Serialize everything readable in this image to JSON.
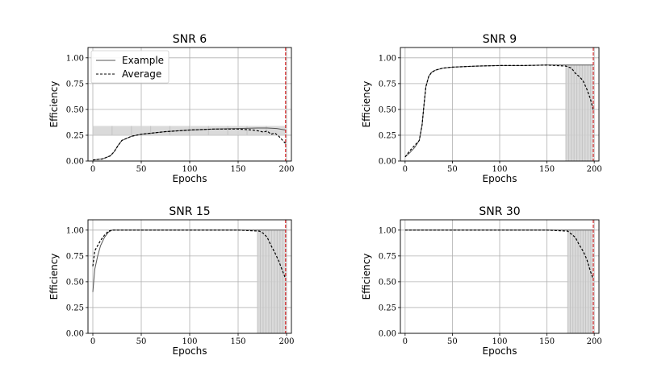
{
  "chart_data": [
    {
      "type": "line",
      "title": "SNR 6",
      "xlabel": "Epochs",
      "ylabel": "Efficiency",
      "xlim": [
        -5,
        205
      ],
      "ylim": [
        0,
        1.1
      ],
      "xticks": [
        "0",
        "50",
        "100",
        "150",
        "200"
      ],
      "yticks": [
        "0.00",
        "0.25",
        "0.50",
        "0.75",
        "1.00"
      ],
      "grid": true,
      "vline_x": 199,
      "legend": {
        "placement": "top-left",
        "entries": [
          "Example",
          "Average"
        ]
      },
      "series": [
        {
          "name": "Example",
          "x": [
            0,
            10,
            18,
            22,
            26,
            30,
            40,
            50,
            75,
            100,
            125,
            150,
            170,
            180,
            190,
            199
          ],
          "values": [
            0.01,
            0.02,
            0.05,
            0.09,
            0.15,
            0.2,
            0.24,
            0.26,
            0.285,
            0.3,
            0.31,
            0.315,
            0.32,
            0.32,
            0.315,
            0.3
          ]
        },
        {
          "name": "Average",
          "x": [
            0,
            10,
            18,
            22,
            26,
            30,
            40,
            50,
            75,
            100,
            125,
            150,
            165,
            172,
            176,
            180,
            184,
            188,
            192,
            196,
            199
          ],
          "values": [
            0.01,
            0.02,
            0.05,
            0.09,
            0.15,
            0.2,
            0.24,
            0.26,
            0.285,
            0.3,
            0.31,
            0.31,
            0.3,
            0.29,
            0.28,
            0.29,
            0.26,
            0.27,
            0.24,
            0.2,
            0.17
          ]
        }
      ],
      "runs_band": {
        "x_start": 0,
        "x_end": 199,
        "low": 0.25,
        "high": 0.34
      }
    },
    {
      "type": "line",
      "title": "SNR 9",
      "xlabel": "Epochs",
      "ylabel": "Efficiency",
      "xlim": [
        -5,
        205
      ],
      "ylim": [
        0,
        1.1
      ],
      "xticks": [
        "0",
        "50",
        "100",
        "150",
        "200"
      ],
      "yticks": [
        "0.00",
        "0.25",
        "0.50",
        "0.75",
        "1.00"
      ],
      "grid": true,
      "vline_x": 199,
      "series": [
        {
          "name": "Example",
          "x": [
            0,
            5,
            10,
            15,
            18,
            20,
            22,
            25,
            28,
            32,
            40,
            50,
            75,
            100,
            125,
            150,
            175,
            199
          ],
          "values": [
            0.04,
            0.08,
            0.13,
            0.2,
            0.35,
            0.55,
            0.72,
            0.82,
            0.86,
            0.88,
            0.9,
            0.91,
            0.92,
            0.925,
            0.925,
            0.93,
            0.93,
            0.93
          ]
        },
        {
          "name": "Average",
          "x": [
            0,
            5,
            10,
            15,
            18,
            20,
            22,
            25,
            28,
            32,
            40,
            50,
            75,
            100,
            125,
            150,
            170,
            176,
            180,
            184,
            188,
            192,
            196,
            199
          ],
          "values": [
            0.04,
            0.1,
            0.15,
            0.2,
            0.35,
            0.55,
            0.72,
            0.82,
            0.86,
            0.88,
            0.9,
            0.91,
            0.92,
            0.925,
            0.925,
            0.93,
            0.92,
            0.9,
            0.85,
            0.82,
            0.78,
            0.7,
            0.6,
            0.49
          ]
        }
      ],
      "runs_band": {
        "x_start": 170,
        "x_end": 199,
        "low": 0.0,
        "high": 0.93
      }
    },
    {
      "type": "line",
      "title": "SNR 15",
      "xlabel": "Epochs",
      "ylabel": "Efficiency",
      "xlim": [
        -5,
        205
      ],
      "ylim": [
        0,
        1.1
      ],
      "xticks": [
        "0",
        "50",
        "100",
        "150",
        "200"
      ],
      "yticks": [
        "0.00",
        "0.25",
        "0.50",
        "0.75",
        "1.00"
      ],
      "grid": true,
      "vline_x": 199,
      "series": [
        {
          "name": "Example",
          "x": [
            0,
            2,
            5,
            8,
            12,
            16,
            20,
            50,
            100,
            150,
            199
          ],
          "values": [
            0.4,
            0.62,
            0.75,
            0.85,
            0.93,
            0.98,
            1.0,
            1.0,
            1.0,
            1.0,
            1.0
          ]
        },
        {
          "name": "Average",
          "x": [
            0,
            2,
            5,
            8,
            12,
            16,
            20,
            50,
            100,
            150,
            172,
            176,
            180,
            184,
            188,
            192,
            196,
            199
          ],
          "values": [
            0.65,
            0.8,
            0.85,
            0.9,
            0.95,
            0.99,
            1.0,
            1.0,
            1.0,
            1.0,
            0.99,
            0.97,
            0.93,
            0.85,
            0.78,
            0.7,
            0.6,
            0.53
          ]
        }
      ],
      "runs_band": {
        "x_start": 170,
        "x_end": 199,
        "low": 0.0,
        "high": 1.0
      }
    },
    {
      "type": "line",
      "title": "SNR 30",
      "xlabel": "Epochs",
      "ylabel": "Efficiency",
      "xlim": [
        -5,
        205
      ],
      "ylim": [
        0,
        1.1
      ],
      "xticks": [
        "0",
        "50",
        "100",
        "150",
        "200"
      ],
      "yticks": [
        "0.00",
        "0.25",
        "0.50",
        "0.75",
        "1.00"
      ],
      "grid": true,
      "vline_x": 199,
      "series": [
        {
          "name": "Example",
          "x": [
            0,
            50,
            100,
            150,
            199
          ],
          "values": [
            1.0,
            1.0,
            1.0,
            1.0,
            1.0
          ]
        },
        {
          "name": "Average",
          "x": [
            0,
            50,
            100,
            150,
            172,
            176,
            180,
            184,
            188,
            192,
            196,
            199
          ],
          "values": [
            1.0,
            1.0,
            1.0,
            1.0,
            0.99,
            0.96,
            0.93,
            0.86,
            0.8,
            0.72,
            0.6,
            0.52
          ]
        }
      ],
      "runs_band": {
        "x_start": 172,
        "x_end": 199,
        "low": 0.0,
        "high": 1.0
      }
    }
  ]
}
